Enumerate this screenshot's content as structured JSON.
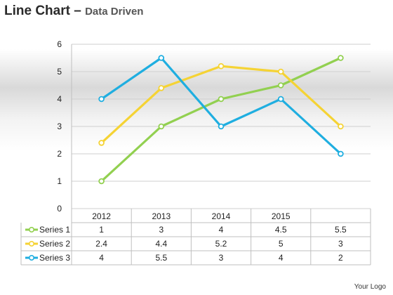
{
  "header": {
    "title": "Line Chart",
    "dash": "–",
    "subtitle": "Data Driven"
  },
  "footer": {
    "logo": "Your Logo"
  },
  "chart_data": {
    "type": "line",
    "categories": [
      "2012",
      "2013",
      "2014",
      "2015",
      ""
    ],
    "ylim": [
      0,
      6
    ],
    "yticks": [
      0,
      1,
      2,
      3,
      4,
      5,
      6
    ],
    "grid": true,
    "legend": "data-table",
    "series": [
      {
        "name": "Series 1",
        "color": "#92d050",
        "values": [
          1,
          3,
          4,
          4.5,
          5.5
        ],
        "labels": [
          "1",
          "3",
          "4",
          "4.5",
          "5.5"
        ]
      },
      {
        "name": "Series 2",
        "color": "#f5d334",
        "values": [
          2.4,
          4.4,
          5.2,
          5,
          3
        ],
        "labels": [
          "2.4",
          "4.4",
          "5.2",
          "5",
          "3"
        ]
      },
      {
        "name": "Series 3",
        "color": "#1faee0",
        "values": [
          4,
          5.5,
          3,
          4,
          2
        ],
        "labels": [
          "4",
          "5.5",
          "3",
          "4",
          "2"
        ]
      }
    ]
  }
}
